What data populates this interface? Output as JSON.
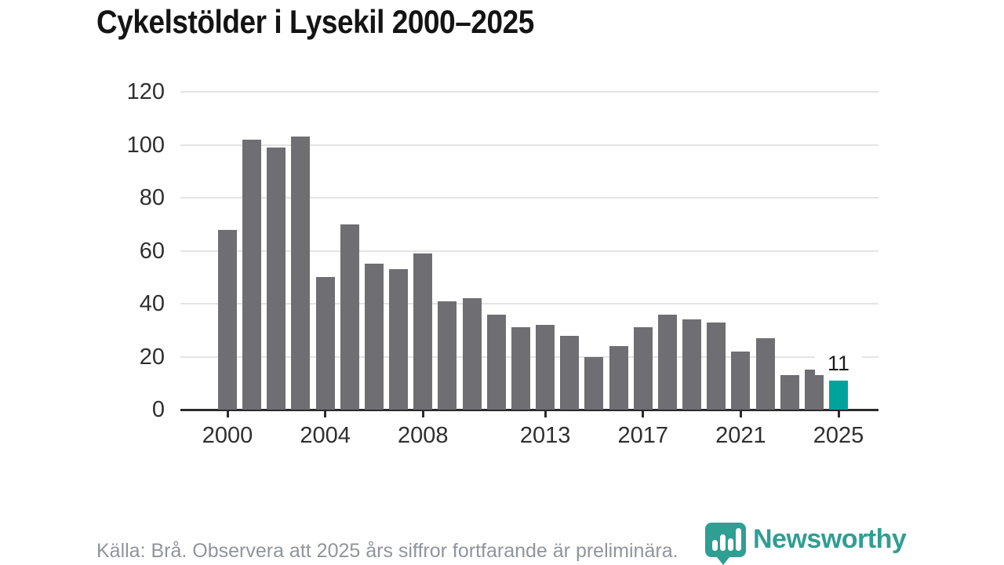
{
  "title": "Cykelstölder i Lysekil 2000–2025",
  "chart_data": {
    "type": "bar",
    "x": [
      2000,
      2001,
      2002,
      2003,
      2004,
      2005,
      2006,
      2007,
      2008,
      2009,
      2010,
      2011,
      2012,
      2013,
      2014,
      2015,
      2016,
      2017,
      2018,
      2019,
      2020,
      2021,
      2022,
      2023,
      2024,
      2025
    ],
    "values": [
      68,
      102,
      99,
      103,
      50,
      70,
      55,
      53,
      59,
      41,
      42,
      36,
      31,
      32,
      28,
      20,
      24,
      31,
      36,
      34,
      33,
      22,
      27,
      13,
      15,
      11
    ],
    "title": "Cykelstölder i Lysekil 2000–2025",
    "xlabel": "",
    "ylabel": "",
    "ylim": [
      0,
      120
    ],
    "yticks": [
      0,
      20,
      40,
      60,
      80,
      100,
      120
    ],
    "xticks": [
      2000,
      2004,
      2008,
      2013,
      2017,
      2021,
      2025
    ],
    "grid": true,
    "legend": "none",
    "bar_color": "#6e6e73",
    "highlight_year": 2025,
    "highlight_color": "#00a39b",
    "highlight_label": "11"
  },
  "footer": {
    "source": "Källa: Brå. Observera att 2025 års siffror fortfarande är preliminära.",
    "logo_text": "Newsworthy"
  },
  "colors": {
    "accent_teal": "#00a39b",
    "logo_teal": "#2f9e93",
    "bar_gray": "#6e6e73",
    "grid_gray": "#e4e4e6",
    "axis_dark": "#2b2b2b",
    "footer_gray": "#8f959c"
  }
}
